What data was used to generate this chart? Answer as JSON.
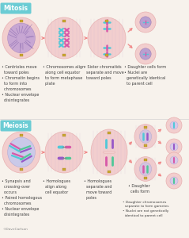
{
  "bg_color": "#f7f2ec",
  "mitosis_label": "Mitosis",
  "meiosis_label": "Meiosis",
  "label_bg": "#6bccd4",
  "cell_outer": "#f2cece",
  "cell_border": "#e8b0b0",
  "cell_inner_purple": "#c8a8d8",
  "cell_nucleus": "#9878b8",
  "spindle_color": "#d4b8d4",
  "arrow_color": "#f08888",
  "text_color": "#404040",
  "chrom_cyan": "#50c8d8",
  "chrom_pink": "#d858a8",
  "chrom_purple": "#9858c8",
  "chrom_green": "#50c898",
  "centriole_color": "#c8a830",
  "copyright": "©DaveCarlson",
  "mitosis_texts": [
    "• Centrioles move\n  toward poles\n• Chromatin begins\n  to form into\n  chromosomes\n• Nuclear envelope\n  disintegrates",
    "• Chromosomes align\n  along cell equator\n  to form metaphase\n  plate",
    "• Sister chromatids\n  separate and move\n  toward poles",
    "• Daughter cells form\n• Nuclei are\n  genetically identical\n  to parent cell"
  ],
  "meiosis_texts": [
    "• Synapsis and\n  crossing-over\n  occurs\n• Paired homologous\n  chromosomes\n• Nuclear envelope\n  disintegrates",
    "• Homologues\n  align along\n  cell equator",
    "• Homologues\n  separate and\n  move toward\n  poles",
    "• Daughter\n  cells form",
    "• Daughter chromosomes\n  separate to form gametes\n• Nuclei are not genetically\n  identical to parent cell"
  ],
  "font_size_label": 5.5,
  "font_size_text": 3.5
}
